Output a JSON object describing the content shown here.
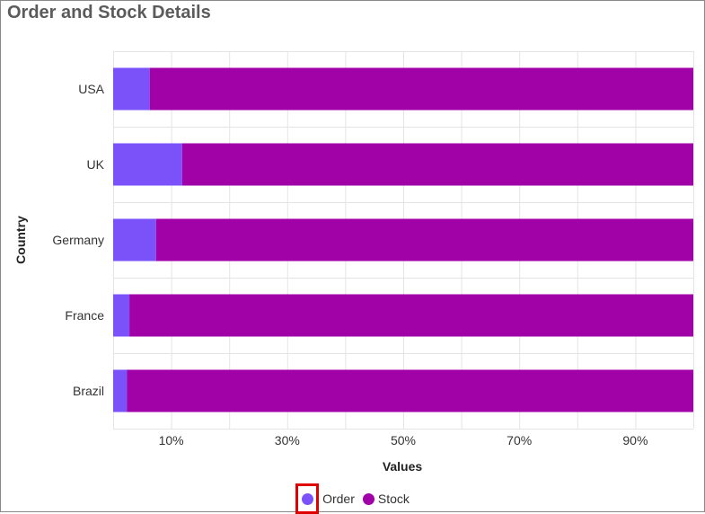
{
  "title": "Order and Stock Details",
  "colors": {
    "order": "#7b52f9",
    "stock": "#a002a8",
    "grid": "#e4e4e4",
    "focus": "#e00000"
  },
  "legend": [
    {
      "label": "Order",
      "color": "#7b52f9",
      "focused": true
    },
    {
      "label": "Stock",
      "color": "#a002a8",
      "focused": false
    }
  ],
  "chart_data": {
    "type": "bar",
    "orientation": "horizontal",
    "stacked": "100%",
    "categories": [
      "USA",
      "UK",
      "Germany",
      "France",
      "Brazil"
    ],
    "series": [
      {
        "name": "Order",
        "values": [
          6.3,
          11.9,
          7.4,
          2.8,
          2.4
        ]
      },
      {
        "name": "Stock",
        "values": [
          93.7,
          88.1,
          92.6,
          97.2,
          97.6
        ]
      }
    ],
    "xlabel": "Values",
    "ylabel": "Country",
    "xlim": [
      0,
      100
    ],
    "xticks": [
      "10%",
      "30%",
      "50%",
      "70%",
      "90%"
    ],
    "grid": true,
    "legend_position": "bottom"
  }
}
